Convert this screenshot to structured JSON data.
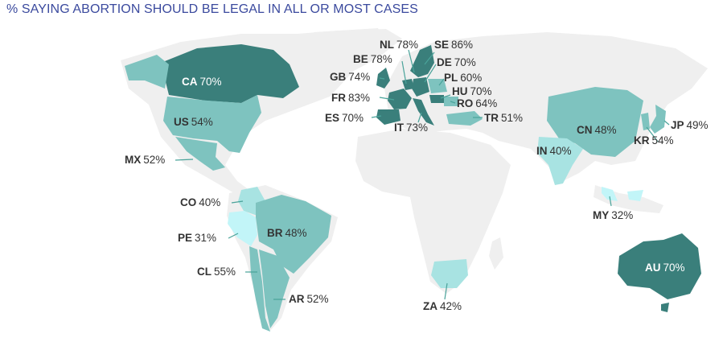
{
  "title": "% SAYING ABORTION SHOULD BE LEGAL IN ALL OR MOST CASES",
  "colors": {
    "background": "#ffffff",
    "land_base": "#efefef",
    "title": "#3b4a9e",
    "dark": "#3a7f7b",
    "mid": "#7ec3bf",
    "light": "#a8e3e2",
    "lightest": "#c2f5f8",
    "leader": "#4aa39a"
  },
  "countries": [
    {
      "code": "CA",
      "value": "70%",
      "shade": "dark"
    },
    {
      "code": "US",
      "value": "54%",
      "shade": "mid"
    },
    {
      "code": "MX",
      "value": "52%",
      "shade": "mid"
    },
    {
      "code": "CO",
      "value": "40%",
      "shade": "light"
    },
    {
      "code": "PE",
      "value": "31%",
      "shade": "lightest"
    },
    {
      "code": "BR",
      "value": "48%",
      "shade": "mid"
    },
    {
      "code": "CL",
      "value": "55%",
      "shade": "mid"
    },
    {
      "code": "AR",
      "value": "52%",
      "shade": "mid"
    },
    {
      "code": "NL",
      "value": "78%",
      "shade": "dark"
    },
    {
      "code": "SE",
      "value": "86%",
      "shade": "dark"
    },
    {
      "code": "BE",
      "value": "78%",
      "shade": "dark"
    },
    {
      "code": "DE",
      "value": "70%",
      "shade": "dark"
    },
    {
      "code": "GB",
      "value": "74%",
      "shade": "dark"
    },
    {
      "code": "PL",
      "value": "60%",
      "shade": "mid"
    },
    {
      "code": "HU",
      "value": "70%",
      "shade": "dark"
    },
    {
      "code": "FR",
      "value": "83%",
      "shade": "dark"
    },
    {
      "code": "RO",
      "value": "64%",
      "shade": "mid"
    },
    {
      "code": "ES",
      "value": "70%",
      "shade": "dark"
    },
    {
      "code": "IT",
      "value": "73%",
      "shade": "dark"
    },
    {
      "code": "TR",
      "value": "51%",
      "shade": "mid"
    },
    {
      "code": "CN",
      "value": "48%",
      "shade": "mid"
    },
    {
      "code": "JP",
      "value": "49%",
      "shade": "mid"
    },
    {
      "code": "KR",
      "value": "54%",
      "shade": "mid"
    },
    {
      "code": "IN",
      "value": "40%",
      "shade": "light"
    },
    {
      "code": "MY",
      "value": "32%",
      "shade": "lightest"
    },
    {
      "code": "ZA",
      "value": "42%",
      "shade": "light"
    },
    {
      "code": "AU",
      "value": "70%",
      "shade": "dark"
    }
  ]
}
